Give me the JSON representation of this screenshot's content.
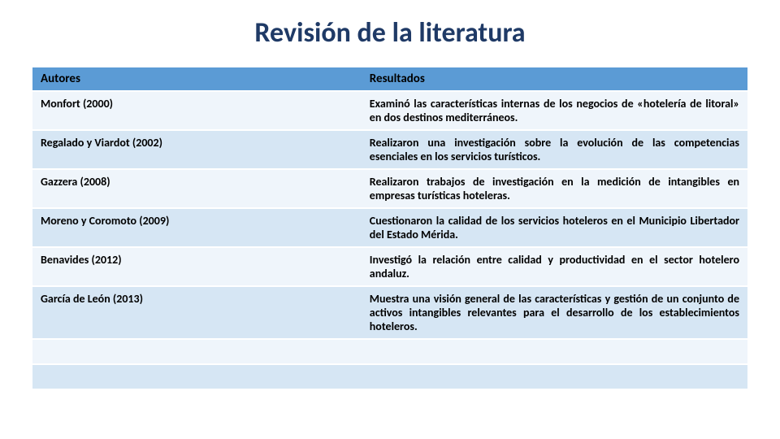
{
  "title": "Revisión de la literatura",
  "table": {
    "type": "table",
    "header_bg": "#5b9bd5",
    "row_colors": [
      "#eff5fb",
      "#d6e6f4"
    ],
    "title_color": "#1f3a66",
    "font_family": "Calibri",
    "title_fontsize": 34,
    "header_fontsize": 15,
    "cell_fontsize": 14,
    "columns": [
      "Autores",
      "Resultados"
    ],
    "col_widths": [
      "46%",
      "54%"
    ],
    "rows": [
      {
        "author": "Monfort (2000)",
        "result": "Examinó las características internas de los negocios de «hotelería de litoral» en dos destinos mediterráneos."
      },
      {
        "author": "Regalado y Viardot (2002)",
        "result": "Realizaron una investigación sobre la evolución de las competencias esenciales en los servicios turísticos."
      },
      {
        "author": "Gazzera (2008)",
        "result": "Realizaron trabajos de investigación en la medición de intangibles en empresas turísticas hoteleras."
      },
      {
        "author": "Moreno y Coromoto (2009)",
        "result": "Cuestionaron la calidad de los servicios hoteleros en el Municipio Libertador del Estado Mérida."
      },
      {
        "author": "Benavides (2012)",
        "result": "Investigó la relación entre calidad y productividad en el sector hotelero andaluz."
      },
      {
        "author": "García de León (2013)",
        "result": "Muestra una visión general de las características y gestión de un conjunto de activos intangibles relevantes para el desarrollo de los establecimientos hoteleros."
      },
      {
        "author": "",
        "result": ""
      },
      {
        "author": "",
        "result": ""
      }
    ]
  }
}
